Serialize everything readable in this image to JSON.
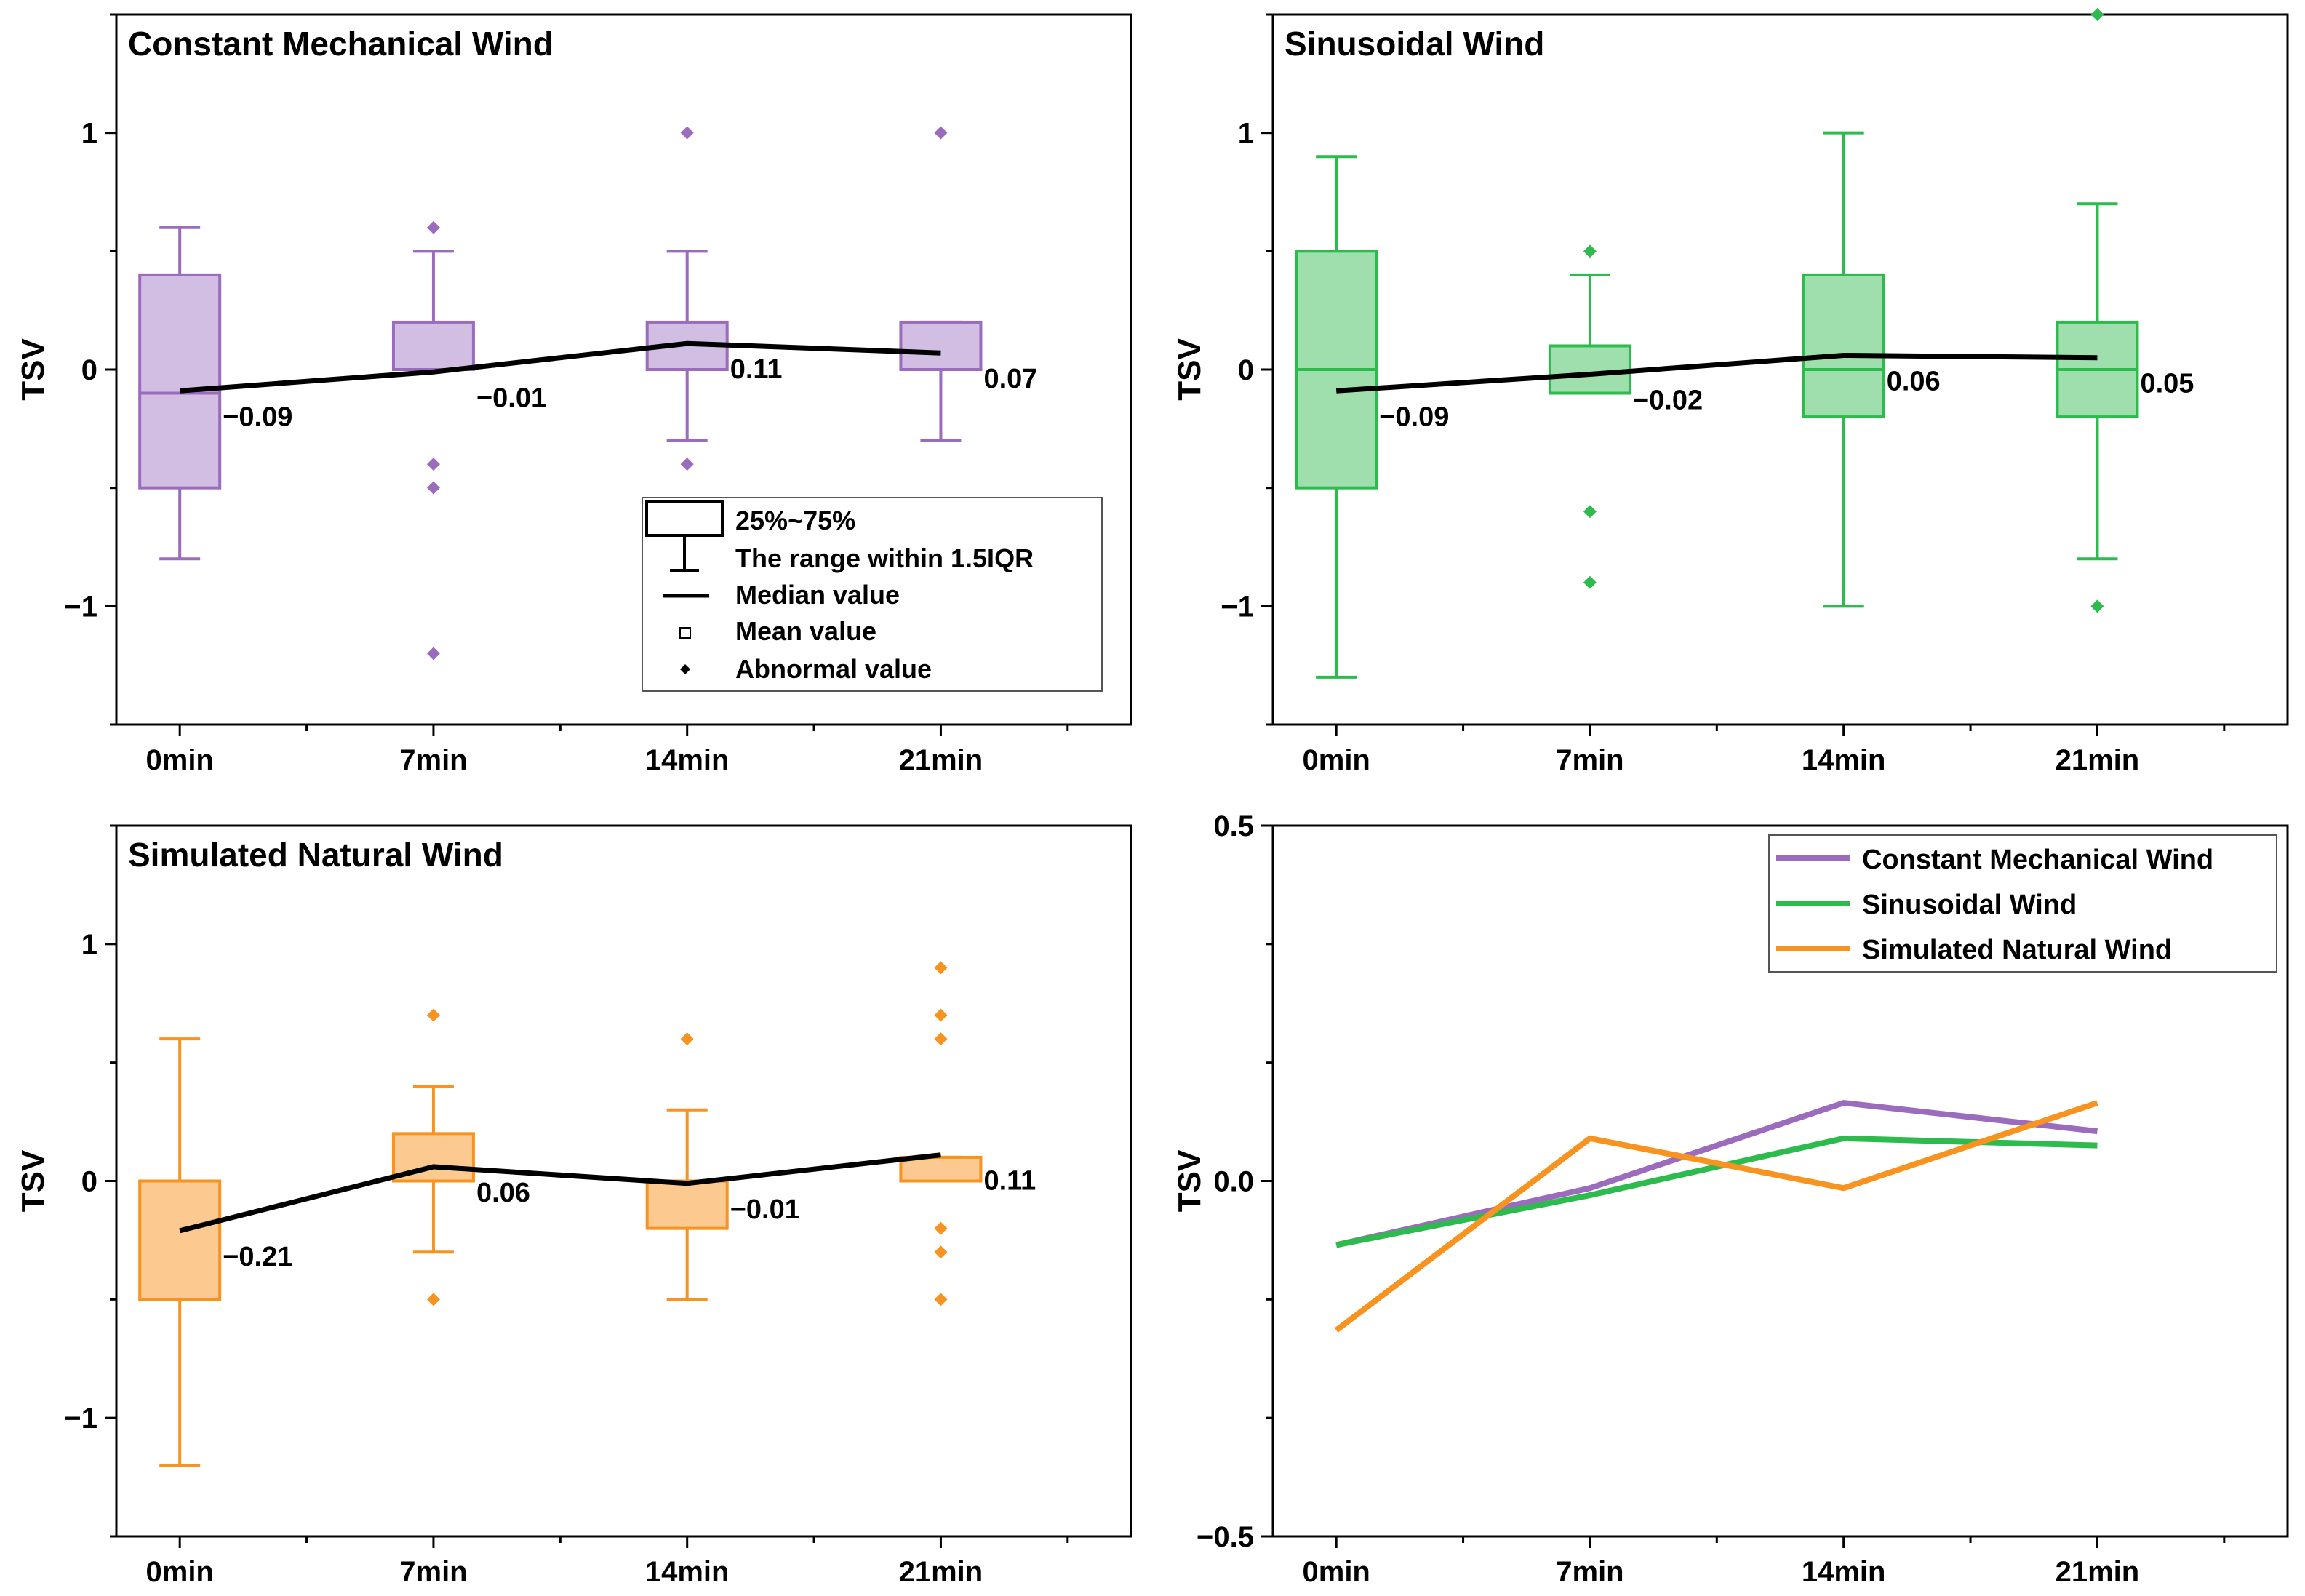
{
  "figure": {
    "panels": [
      {
        "title": "Constant Mechanical Wind",
        "color": "#9b6bbd",
        "fill": "#d2bde3",
        "ylabel": "TSV",
        "ylim": [
          -1.5,
          1.5
        ],
        "yticks": [
          {
            "v": 1,
            "label": "1"
          },
          {
            "v": 0,
            "label": "0"
          },
          {
            "v": -1,
            "label": "−1"
          }
        ],
        "categories": [
          "0min",
          "7min",
          "14min",
          "21min"
        ],
        "boxes": [
          {
            "q1": -0.5,
            "median": -0.1,
            "q3": 0.4,
            "wlo": -0.8,
            "whi": 0.6,
            "outliers": []
          },
          {
            "q1": 0.0,
            "median": 0.0,
            "q3": 0.2,
            "wlo": 0.0,
            "whi": 0.5,
            "outliers": [
              0.6,
              -0.4,
              -0.5,
              -1.2
            ]
          },
          {
            "q1": 0.0,
            "median": 0.0,
            "q3": 0.2,
            "wlo": -0.3,
            "whi": 0.5,
            "outliers": [
              1.0,
              -0.4
            ]
          },
          {
            "q1": 0.0,
            "median": 0.0,
            "q3": 0.2,
            "wlo": -0.3,
            "whi": 0.2,
            "outliers": [
              1.0
            ]
          }
        ],
        "means": [
          -0.09,
          -0.01,
          0.11,
          0.07
        ],
        "mean_labels": [
          "−0.09",
          "−0.01",
          "0.11",
          "0.07"
        ],
        "legend": {
          "box": "25%~75%",
          "whisker": "The range within 1.5IQR",
          "median": "Median value",
          "mean": "Mean value",
          "outlier": "Abnormal value"
        }
      },
      {
        "title": "Sinusoidal Wind",
        "color": "#2dbb4e",
        "fill": "#9fdfae",
        "ylabel": "TSV",
        "ylim": [
          -1.5,
          1.5
        ],
        "yticks": [
          {
            "v": 1,
            "label": "1"
          },
          {
            "v": 0,
            "label": "0"
          },
          {
            "v": -1,
            "label": "−1"
          }
        ],
        "categories": [
          "0min",
          "7min",
          "14min",
          "21min"
        ],
        "boxes": [
          {
            "q1": -0.5,
            "median": 0.0,
            "q3": 0.5,
            "wlo": -1.3,
            "whi": 0.9,
            "outliers": []
          },
          {
            "q1": -0.1,
            "median": -0.1,
            "q3": 0.1,
            "wlo": -0.1,
            "whi": 0.4,
            "outliers": [
              0.5,
              -0.6,
              -0.9
            ]
          },
          {
            "q1": -0.2,
            "median": 0.0,
            "q3": 0.4,
            "wlo": -1.0,
            "whi": 1.0,
            "outliers": []
          },
          {
            "q1": -0.2,
            "median": 0.0,
            "q3": 0.2,
            "wlo": -0.8,
            "whi": 0.7,
            "outliers": [
              1.5,
              -1.0
            ]
          }
        ],
        "means": [
          -0.09,
          -0.02,
          0.06,
          0.05
        ],
        "mean_labels": [
          "−0.09",
          "−0.02",
          "0.06",
          "0.05"
        ]
      },
      {
        "title": "Simulated Natural Wind",
        "color": "#f7931e",
        "fill": "#fcc990",
        "ylabel": "TSV",
        "ylim": [
          -1.5,
          1.5
        ],
        "yticks": [
          {
            "v": 1,
            "label": "1"
          },
          {
            "v": 0,
            "label": "0"
          },
          {
            "v": -1,
            "label": "−1"
          }
        ],
        "categories": [
          "0min",
          "7min",
          "14min",
          "21min"
        ],
        "boxes": [
          {
            "q1": -0.5,
            "median": 0.0,
            "q3": 0.0,
            "wlo": -1.2,
            "whi": 0.6,
            "outliers": []
          },
          {
            "q1": 0.0,
            "median": 0.0,
            "q3": 0.2,
            "wlo": -0.3,
            "whi": 0.4,
            "outliers": [
              0.7,
              -0.5
            ]
          },
          {
            "q1": -0.2,
            "median": 0.0,
            "q3": 0.0,
            "wlo": -0.5,
            "whi": 0.3,
            "outliers": [
              0.6
            ]
          },
          {
            "q1": 0.0,
            "median": 0.0,
            "q3": 0.1,
            "wlo": 0.0,
            "whi": 0.1,
            "outliers": [
              0.9,
              0.7,
              0.6,
              -0.2,
              -0.3,
              -0.5
            ]
          }
        ],
        "means": [
          -0.21,
          0.06,
          -0.01,
          0.11
        ],
        "mean_labels": [
          "−0.21",
          "0.06",
          "−0.01",
          "0.11"
        ]
      }
    ],
    "line_panel": {
      "ylabel": "TSV",
      "ylim": [
        -0.5,
        0.5
      ],
      "yticks": [
        {
          "v": 0.5,
          "label": "0.5"
        },
        {
          "v": 0.0,
          "label": "0.0"
        },
        {
          "v": -0.5,
          "label": "−0.5"
        }
      ],
      "categories": [
        "0min",
        "7min",
        "14min",
        "21min"
      ],
      "legend_position": "top-right"
    }
  },
  "chart_data": [
    {
      "type": "box",
      "title": "Constant Mechanical Wind",
      "xlabel": "",
      "ylabel": "TSV",
      "ylim": [
        -1.5,
        1.5
      ],
      "categories": [
        "0min",
        "7min",
        "14min",
        "21min"
      ],
      "means": [
        -0.09,
        -0.01,
        0.11,
        0.07
      ]
    },
    {
      "type": "box",
      "title": "Sinusoidal Wind",
      "xlabel": "",
      "ylabel": "TSV",
      "ylim": [
        -1.5,
        1.5
      ],
      "categories": [
        "0min",
        "7min",
        "14min",
        "21min"
      ],
      "means": [
        -0.09,
        -0.02,
        0.06,
        0.05
      ]
    },
    {
      "type": "box",
      "title": "Simulated Natural Wind",
      "xlabel": "",
      "ylabel": "TSV",
      "ylim": [
        -1.5,
        1.5
      ],
      "categories": [
        "0min",
        "7min",
        "14min",
        "21min"
      ],
      "means": [
        -0.21,
        0.06,
        -0.01,
        0.11
      ]
    },
    {
      "type": "line",
      "title": "",
      "xlabel": "",
      "ylabel": "TSV",
      "ylim": [
        -0.5,
        0.5
      ],
      "categories": [
        "0min",
        "7min",
        "14min",
        "21min"
      ],
      "series": [
        {
          "name": "Constant Mechanical Wind",
          "color": "#9b6bbd",
          "values": [
            -0.09,
            -0.01,
            0.11,
            0.07
          ]
        },
        {
          "name": "Sinusoidal Wind",
          "color": "#2dbb4e",
          "values": [
            -0.09,
            -0.02,
            0.06,
            0.05
          ]
        },
        {
          "name": "Simulated Natural Wind",
          "color": "#f7931e",
          "values": [
            -0.21,
            0.06,
            -0.01,
            0.11
          ]
        }
      ]
    }
  ]
}
